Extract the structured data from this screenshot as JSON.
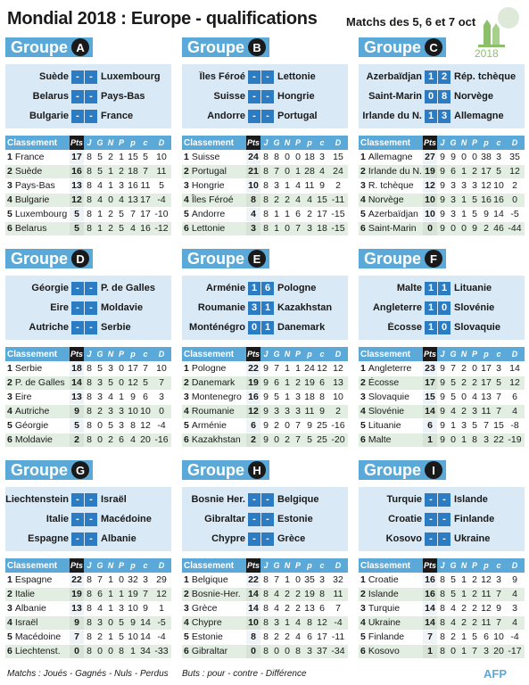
{
  "title": "Mondial 2018 : Europe - qualifications",
  "subtitle": "Matchs des 5, 6 et 7 oct",
  "logo_year": "2018",
  "legend_left": "Matchs : Joués - Gagnés - Nuls - Perdus",
  "legend_right": "Buts : pour - contre - Différence",
  "credit": "AFP",
  "columns": [
    "Classement",
    "Pts",
    "J",
    "G",
    "N",
    "P",
    "p",
    "c",
    "D"
  ],
  "groups": [
    {
      "word": "Groupe",
      "letter": "A",
      "matches": [
        {
          "home": "Suède",
          "s1": "-",
          "s2": "-",
          "away": "Luxembourg"
        },
        {
          "home": "Belarus",
          "s1": "-",
          "s2": "-",
          "away": "Pays-Bas"
        },
        {
          "home": "Bulgarie",
          "s1": "-",
          "s2": "-",
          "away": "France"
        }
      ],
      "rows": [
        [
          "1",
          "France",
          "17",
          "8",
          "5",
          "2",
          "1",
          "15",
          "5",
          "10"
        ],
        [
          "2",
          "Suède",
          "16",
          "8",
          "5",
          "1",
          "2",
          "18",
          "7",
          "11"
        ],
        [
          "3",
          "Pays-Bas",
          "13",
          "8",
          "4",
          "1",
          "3",
          "16",
          "11",
          "5"
        ],
        [
          "4",
          "Bulgarie",
          "12",
          "8",
          "4",
          "0",
          "4",
          "13",
          "17",
          "-4"
        ],
        [
          "5",
          "Luxembourg",
          "5",
          "8",
          "1",
          "2",
          "5",
          "7",
          "17",
          "-10"
        ],
        [
          "6",
          "Belarus",
          "5",
          "8",
          "1",
          "2",
          "5",
          "4",
          "16",
          "-12"
        ]
      ]
    },
    {
      "word": "Groupe",
      "letter": "B",
      "matches": [
        {
          "home": "Îles Féroé",
          "s1": "-",
          "s2": "-",
          "away": "Lettonie"
        },
        {
          "home": "Suisse",
          "s1": "-",
          "s2": "-",
          "away": "Hongrie"
        },
        {
          "home": "Andorre",
          "s1": "-",
          "s2": "-",
          "away": "Portugal"
        }
      ],
      "rows": [
        [
          "1",
          "Suisse",
          "24",
          "8",
          "8",
          "0",
          "0",
          "18",
          "3",
          "15"
        ],
        [
          "2",
          "Portugal",
          "21",
          "8",
          "7",
          "0",
          "1",
          "28",
          "4",
          "24"
        ],
        [
          "3",
          "Hongrie",
          "10",
          "8",
          "3",
          "1",
          "4",
          "11",
          "9",
          "2"
        ],
        [
          "4",
          "Îles Féroé",
          "8",
          "8",
          "2",
          "2",
          "4",
          "4",
          "15",
          "-11"
        ],
        [
          "5",
          "Andorre",
          "4",
          "8",
          "1",
          "1",
          "6",
          "2",
          "17",
          "-15"
        ],
        [
          "6",
          "Lettonie",
          "3",
          "8",
          "1",
          "0",
          "7",
          "3",
          "18",
          "-15"
        ]
      ]
    },
    {
      "word": "Groupe",
      "letter": "C",
      "matches": [
        {
          "home": "Azerbaïdjan",
          "s1": "1",
          "s2": "2",
          "away": "Rép. tchèque"
        },
        {
          "home": "Saint-Marin",
          "s1": "0",
          "s2": "8",
          "away": "Norvège"
        },
        {
          "home": "Irlande du N.",
          "s1": "1",
          "s2": "3",
          "away": "Allemagne"
        }
      ],
      "rows": [
        [
          "1",
          "Allemagne",
          "27",
          "9",
          "9",
          "0",
          "0",
          "38",
          "3",
          "35"
        ],
        [
          "2",
          "Irlande du N.",
          "19",
          "9",
          "6",
          "1",
          "2",
          "17",
          "5",
          "12"
        ],
        [
          "3",
          "R. tchèque",
          "12",
          "9",
          "3",
          "3",
          "3",
          "12",
          "10",
          "2"
        ],
        [
          "4",
          "Norvège",
          "10",
          "9",
          "3",
          "1",
          "5",
          "16",
          "16",
          "0"
        ],
        [
          "5",
          "Azerbaïdjan",
          "10",
          "9",
          "3",
          "1",
          "5",
          "9",
          "14",
          "-5"
        ],
        [
          "6",
          "Saint-Marin",
          "0",
          "9",
          "0",
          "0",
          "9",
          "2",
          "46",
          "-44"
        ]
      ]
    },
    {
      "word": "Groupe",
      "letter": "D",
      "matches": [
        {
          "home": "Géorgie",
          "s1": "-",
          "s2": "-",
          "away": "P. de Galles"
        },
        {
          "home": "Eire",
          "s1": "-",
          "s2": "-",
          "away": "Moldavie"
        },
        {
          "home": "Autriche",
          "s1": "-",
          "s2": "-",
          "away": "Serbie"
        }
      ],
      "rows": [
        [
          "1",
          "Serbie",
          "18",
          "8",
          "5",
          "3",
          "0",
          "17",
          "7",
          "10"
        ],
        [
          "2",
          "P. de Galles",
          "14",
          "8",
          "3",
          "5",
          "0",
          "12",
          "5",
          "7"
        ],
        [
          "3",
          "Eire",
          "13",
          "8",
          "3",
          "4",
          "1",
          "9",
          "6",
          "3"
        ],
        [
          "4",
          "Autriche",
          "9",
          "8",
          "2",
          "3",
          "3",
          "10",
          "10",
          "0"
        ],
        [
          "5",
          "Géorgie",
          "5",
          "8",
          "0",
          "5",
          "3",
          "8",
          "12",
          "-4"
        ],
        [
          "6",
          "Moldavie",
          "2",
          "8",
          "0",
          "2",
          "6",
          "4",
          "20",
          "-16"
        ]
      ]
    },
    {
      "word": "Groupe",
      "letter": "E",
      "matches": [
        {
          "home": "Arménie",
          "s1": "1",
          "s2": "6",
          "away": "Pologne"
        },
        {
          "home": "Roumanie",
          "s1": "3",
          "s2": "1",
          "away": "Kazakhstan"
        },
        {
          "home": "Monténégro",
          "s1": "0",
          "s2": "1",
          "away": "Danemark"
        }
      ],
      "rows": [
        [
          "1",
          "Pologne",
          "22",
          "9",
          "7",
          "1",
          "1",
          "24",
          "12",
          "12"
        ],
        [
          "2",
          "Danemark",
          "19",
          "9",
          "6",
          "1",
          "2",
          "19",
          "6",
          "13"
        ],
        [
          "3",
          "Montenegro",
          "16",
          "9",
          "5",
          "1",
          "3",
          "18",
          "8",
          "10"
        ],
        [
          "4",
          "Roumanie",
          "12",
          "9",
          "3",
          "3",
          "3",
          "11",
          "9",
          "2"
        ],
        [
          "5",
          "Arménie",
          "6",
          "9",
          "2",
          "0",
          "7",
          "9",
          "25",
          "-16"
        ],
        [
          "6",
          "Kazakhstan",
          "2",
          "9",
          "0",
          "2",
          "7",
          "5",
          "25",
          "-20"
        ]
      ]
    },
    {
      "word": "Groupe",
      "letter": "F",
      "matches": [
        {
          "home": "Malte",
          "s1": "1",
          "s2": "1",
          "away": "Lituanie"
        },
        {
          "home": "Angleterre",
          "s1": "1",
          "s2": "0",
          "away": "Slovénie"
        },
        {
          "home": "Écosse",
          "s1": "1",
          "s2": "0",
          "away": "Slovaquie"
        }
      ],
      "rows": [
        [
          "1",
          "Angleterre",
          "23",
          "9",
          "7",
          "2",
          "0",
          "17",
          "3",
          "14"
        ],
        [
          "2",
          "Écosse",
          "17",
          "9",
          "5",
          "2",
          "2",
          "17",
          "5",
          "12"
        ],
        [
          "3",
          "Slovaquie",
          "15",
          "9",
          "5",
          "0",
          "4",
          "13",
          "7",
          "6"
        ],
        [
          "4",
          "Slovénie",
          "14",
          "9",
          "4",
          "2",
          "3",
          "11",
          "7",
          "4"
        ],
        [
          "5",
          "Lituanie",
          "6",
          "9",
          "1",
          "3",
          "5",
          "7",
          "15",
          "-8"
        ],
        [
          "6",
          "Malte",
          "1",
          "9",
          "0",
          "1",
          "8",
          "3",
          "22",
          "-19"
        ]
      ]
    },
    {
      "word": "Groupe",
      "letter": "G",
      "matches": [
        {
          "home": "Liechtenstein",
          "s1": "-",
          "s2": "-",
          "away": "Israël"
        },
        {
          "home": "Italie",
          "s1": "-",
          "s2": "-",
          "away": "Macédoine"
        },
        {
          "home": "Espagne",
          "s1": "-",
          "s2": "-",
          "away": "Albanie"
        }
      ],
      "rows": [
        [
          "1",
          "Espagne",
          "22",
          "8",
          "7",
          "1",
          "0",
          "32",
          "3",
          "29"
        ],
        [
          "2",
          "Italie",
          "19",
          "8",
          "6",
          "1",
          "1",
          "19",
          "7",
          "12"
        ],
        [
          "3",
          "Albanie",
          "13",
          "8",
          "4",
          "1",
          "3",
          "10",
          "9",
          "1"
        ],
        [
          "4",
          "Israël",
          "9",
          "8",
          "3",
          "0",
          "5",
          "9",
          "14",
          "-5"
        ],
        [
          "5",
          "Macédoine",
          "7",
          "8",
          "2",
          "1",
          "5",
          "10",
          "14",
          "-4"
        ],
        [
          "6",
          "Liechtenst.",
          "0",
          "8",
          "0",
          "0",
          "8",
          "1",
          "34",
          "-33"
        ]
      ]
    },
    {
      "word": "Groupe",
      "letter": "H",
      "matches": [
        {
          "home": "Bosnie Her.",
          "s1": "-",
          "s2": "-",
          "away": "Belgique"
        },
        {
          "home": "Gibraltar",
          "s1": "-",
          "s2": "-",
          "away": "Estonie"
        },
        {
          "home": "Chypre",
          "s1": "-",
          "s2": "-",
          "away": "Grèce"
        }
      ],
      "rows": [
        [
          "1",
          "Belgique",
          "22",
          "8",
          "7",
          "1",
          "0",
          "35",
          "3",
          "32"
        ],
        [
          "2",
          "Bosnie-Her.",
          "14",
          "8",
          "4",
          "2",
          "2",
          "19",
          "8",
          "11"
        ],
        [
          "3",
          "Grèce",
          "14",
          "8",
          "4",
          "2",
          "2",
          "13",
          "6",
          "7"
        ],
        [
          "4",
          "Chypre",
          "10",
          "8",
          "3",
          "1",
          "4",
          "8",
          "12",
          "-4"
        ],
        [
          "5",
          "Estonie",
          "8",
          "8",
          "2",
          "2",
          "4",
          "6",
          "17",
          "-11"
        ],
        [
          "6",
          "Gibraltar",
          "0",
          "8",
          "0",
          "0",
          "8",
          "3",
          "37",
          "-34"
        ]
      ]
    },
    {
      "word": "Groupe",
      "letter": "I",
      "matches": [
        {
          "home": "Turquie",
          "s1": "-",
          "s2": "-",
          "away": "Islande"
        },
        {
          "home": "Croatie",
          "s1": "-",
          "s2": "-",
          "away": "Finlande"
        },
        {
          "home": "Kosovo",
          "s1": "-",
          "s2": "-",
          "away": "Ukraine"
        }
      ],
      "rows": [
        [
          "1",
          "Croatie",
          "16",
          "8",
          "5",
          "1",
          "2",
          "12",
          "3",
          "9"
        ],
        [
          "2",
          "Islande",
          "16",
          "8",
          "5",
          "1",
          "2",
          "11",
          "7",
          "4"
        ],
        [
          "3",
          "Turquie",
          "14",
          "8",
          "4",
          "2",
          "2",
          "12",
          "9",
          "3"
        ],
        [
          "4",
          "Ukraine",
          "14",
          "8",
          "4",
          "2",
          "2",
          "11",
          "7",
          "4"
        ],
        [
          "5",
          "Finlande",
          "7",
          "8",
          "2",
          "1",
          "5",
          "6",
          "10",
          "-4"
        ],
        [
          "6",
          "Kosovo",
          "1",
          "8",
          "0",
          "1",
          "7",
          "3",
          "20",
          "-17"
        ]
      ]
    }
  ]
}
